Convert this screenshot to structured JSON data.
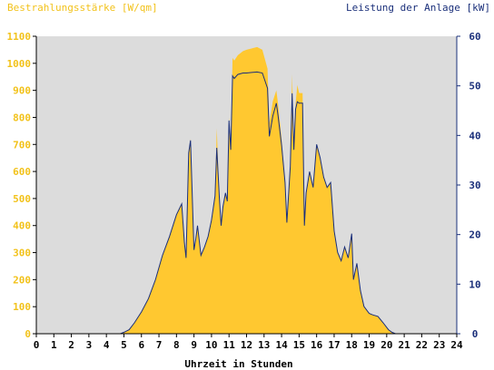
{
  "colors": {
    "irradiance_fill": "#ffc830",
    "power_line": "#1a2f7a",
    "plot_bg": "#dcdcdc",
    "left_axis_text": "#f2c21b",
    "right_axis_text": "#1a2f7a",
    "axis_line": "#000000"
  },
  "chart_data": {
    "type": "area",
    "title_left": "Bestrahlungsstärke [W/qm]",
    "title_right": "Leistung der Anlage [kW]",
    "xlabel": "Uhrzeit in Stunden",
    "xlim": [
      0,
      24
    ],
    "ylim_left": [
      0,
      1100
    ],
    "ylim_right": [
      0,
      60
    ],
    "x_ticks": [
      "0",
      "1",
      "2",
      "3",
      "4",
      "5",
      "6",
      "7",
      "8",
      "9",
      "10",
      "11",
      "12",
      "13",
      "14",
      "15",
      "16",
      "17",
      "18",
      "19",
      "20",
      "21",
      "22",
      "23",
      "24"
    ],
    "y_left_ticks": [
      "0",
      "100",
      "200",
      "300",
      "400",
      "500",
      "600",
      "700",
      "800",
      "900",
      "1000",
      "1100"
    ],
    "y_right_ticks": [
      "0",
      "10",
      "20",
      "30",
      "40",
      "50",
      "60"
    ],
    "grid": false,
    "series": [
      {
        "name": "Bestrahlungsstärke [W/qm]",
        "axis": "left",
        "style": "area",
        "x": [
          0,
          4.8,
          5.0,
          5.3,
          5.6,
          6.0,
          6.4,
          6.8,
          7.2,
          7.6,
          8.0,
          8.3,
          8.45,
          8.55,
          8.7,
          8.8,
          9.0,
          9.1,
          9.2,
          9.4,
          9.6,
          9.8,
          10.0,
          10.2,
          10.3,
          10.45,
          10.55,
          10.65,
          10.8,
          10.9,
          11.0,
          11.1,
          11.2,
          11.3,
          11.5,
          11.8,
          12.0,
          12.3,
          12.6,
          12.9,
          13.2,
          13.3,
          13.5,
          13.7,
          13.8,
          14.0,
          14.2,
          14.3,
          14.5,
          14.6,
          14.7,
          14.8,
          14.9,
          15.0,
          15.2,
          15.3,
          15.4,
          15.6,
          15.8,
          16.0,
          16.2,
          16.4,
          16.6,
          16.8,
          17.0,
          17.2,
          17.4,
          17.6,
          17.8,
          18.0,
          18.1,
          18.3,
          18.5,
          18.7,
          19.0,
          19.2,
          19.5,
          19.8,
          20.1,
          20.3,
          20.5,
          24
        ],
        "y": [
          0,
          0,
          5,
          15,
          40,
          80,
          130,
          200,
          290,
          360,
          440,
          480,
          340,
          280,
          670,
          720,
          310,
          350,
          400,
          290,
          320,
          360,
          420,
          510,
          760,
          500,
          400,
          470,
          520,
          490,
          800,
          680,
          1020,
          1010,
          1030,
          1045,
          1050,
          1055,
          1060,
          1050,
          980,
          780,
          860,
          900,
          850,
          720,
          560,
          410,
          620,
          960,
          680,
          850,
          920,
          890,
          890,
          400,
          520,
          600,
          540,
          700,
          650,
          580,
          540,
          560,
          380,
          300,
          270,
          320,
          280,
          370,
          200,
          260,
          160,
          100,
          75,
          70,
          65,
          40,
          15,
          5,
          0,
          0
        ]
      },
      {
        "name": "Leistung der Anlage [kW]",
        "axis": "right",
        "style": "line",
        "x": [
          0,
          4.8,
          5.0,
          5.3,
          5.6,
          6.0,
          6.4,
          6.8,
          7.2,
          7.6,
          8.0,
          8.3,
          8.45,
          8.55,
          8.7,
          8.8,
          9.0,
          9.1,
          9.2,
          9.4,
          9.6,
          9.8,
          10.0,
          10.2,
          10.3,
          10.45,
          10.55,
          10.65,
          10.8,
          10.9,
          11.0,
          11.1,
          11.2,
          11.3,
          11.5,
          11.8,
          12.0,
          12.3,
          12.6,
          12.9,
          13.2,
          13.3,
          13.5,
          13.7,
          13.8,
          14.0,
          14.2,
          14.3,
          14.5,
          14.6,
          14.7,
          14.8,
          14.9,
          15.0,
          15.2,
          15.3,
          15.4,
          15.6,
          15.8,
          16.0,
          16.2,
          16.4,
          16.6,
          16.8,
          17.0,
          17.2,
          17.4,
          17.6,
          17.8,
          18.0,
          18.1,
          18.3,
          18.5,
          18.7,
          19.0,
          19.2,
          19.5,
          19.8,
          20.1,
          20.3,
          20.5,
          24
        ],
        "y": [
          0,
          0,
          0.3,
          0.8,
          2.2,
          4.4,
          7.1,
          10.9,
          15.8,
          19.6,
          24.0,
          26.2,
          18.5,
          15.3,
          36.5,
          39.0,
          16.9,
          19.1,
          21.8,
          15.8,
          17.5,
          19.6,
          22.9,
          27.8,
          37.5,
          27.3,
          21.8,
          25.6,
          28.4,
          26.7,
          43.0,
          37.1,
          52.0,
          51.5,
          52.3,
          52.6,
          52.6,
          52.7,
          52.8,
          52.6,
          49.5,
          39.8,
          43.9,
          46.5,
          44.0,
          38.0,
          30.5,
          22.4,
          33.8,
          48.5,
          37.1,
          45.3,
          46.8,
          46.5,
          46.5,
          21.8,
          28.4,
          32.7,
          29.5,
          38.2,
          35.5,
          31.6,
          29.5,
          30.5,
          20.7,
          16.4,
          14.7,
          17.5,
          15.3,
          20.2,
          10.9,
          14.2,
          8.7,
          5.5,
          4.1,
          3.8,
          3.5,
          2.2,
          0.8,
          0.3,
          0,
          0
        ]
      }
    ]
  }
}
